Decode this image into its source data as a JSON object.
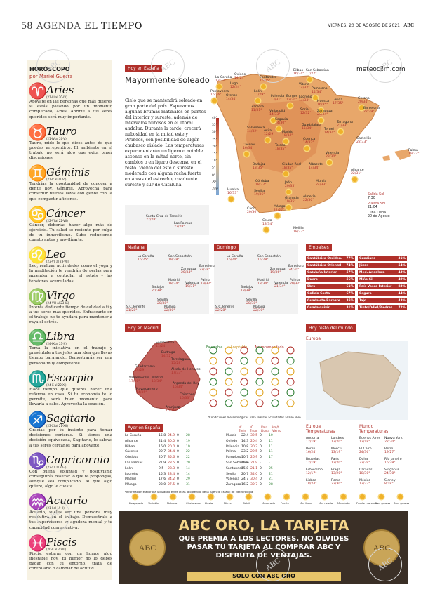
{
  "header": {
    "page": "58",
    "section": "AGENDA",
    "section_bold": "EL TIEMPO",
    "date": "VIERNES, 20 DE AGOSTO DE 2021",
    "brand": "ABC"
  },
  "horoscope": {
    "title": "HORÓSCOPO",
    "author": "por Mariel Guerra",
    "signs": [
      {
        "name": "Aries",
        "dates": "(21-III al 20-IV)",
        "text": "Apoyate en las personas que más quieres si estás pasando por un momento complicado, Aries. Abrirte a tus seres queridos será muy importante."
      },
      {
        "name": "Tauro",
        "dates": "(21-IV al 20-V)",
        "text": "Tauro, mide lo que dices antes de que puedas arrepentirte. El ambiente en el trabajo no será algo que evita tener discusiones."
      },
      {
        "name": "Géminis",
        "dates": "(21-V al 21-VI)",
        "text": "Tendrías la oportunidad de conocer a gente hoy, Géminis. Aprovecha para construir nuevos lazos con gente con la que compartir aficiones."
      },
      {
        "name": "Cáncer",
        "dates": "(22-VI al 22-VII)",
        "text": "Cáncer, deberías hacer algo más de ejercicio. Tu salud se resiente por culpa de tu inmovilismo. Sube reduciendo cuanto antes y movilízarte."
      },
      {
        "name": "Leo",
        "dates": "(23-VII al 23-VIII)",
        "text": "Leo, realizar actividades como el yoga y la meditación te vendrán de perlas para aprender a controlar el estrés y las tensiones acumuladas."
      },
      {
        "name": "Virgo",
        "dates": "(24-VIII al 23-IX)",
        "text": "Intenta dedicarte tiempo de calidad a ti y a tus seres más queridos. Enfrascarte en el trabajo no te ayudará para mantener a raya el estrés."
      },
      {
        "name": "Libra",
        "dates": "(24-IX al 23-X)",
        "text": "Toma la iniciativa en el trabajo y preséntale a tus jefes una idea que llevas tiempo barajando. Demostrarás ser una persona muy competente."
      },
      {
        "name": "Escorpio",
        "dates": "(24-X al 22-XI)",
        "text": "Hace tiempo que quieres hacer una reforma en casa. Si tu economía te lo permite, será buen momento para llevarla a cabo. Aprovecha la ocasión."
      },
      {
        "name": "Sagitario",
        "dates": "(23-XI al 21-XII)",
        "text": "Gracias por tu instinto para tomar decisiones certeras. Si tienes una decisión equivocada, Sagitario, lo sabrás a tus seres cercanos para apoyarte."
      },
      {
        "name": "Capricornio",
        "dates": "(22-XII al 20-I)",
        "text": "Con buena voluntad y positivismo conseguirás realizar lo que te propongas, aunque sea complicado. Al que algo quiere, algo le cuesta."
      },
      {
        "name": "Acuario",
        "dates": "(21-I al 19-II)",
        "text": "Acuario, sueles ser una persona muy resolutiva en el trabajo. Demuéstrale a tus supervisores tu agudeza mental y tu capacidad comunicativa."
      },
      {
        "name": "Piscis",
        "dates": "(20-II al 20-III)",
        "text": "Piscis, estarás con un humor algo inestable hoy. El humor no lo debes pagar con tu entorno, trata de controlarlo o cambiar de actitud."
      }
    ]
  },
  "today": {
    "tag": "Hoy en España",
    "title": "Mayormente soleado",
    "text": "Cielo que se mantendrá soleado en gran parte del país. Esperamos algunas brumas matinales en puntos del interior y sureste, además de intervalos nubosos en el litoral andaluz. Durante la tarde, crecerá nubosidad en la mitad este y Pirineos, con posibilidad de algún chubasco aislado. Las temperaturas experimentarán un ligero o notable ascenso en la mitad norte, sin cambios o en ligero descenso en el resto. Viento del este o sureste moderado con alguna racha fuerte en áreas del estrecho, cuadrante sureste y sur de Cataluña",
    "site": "meteoclim.com"
  },
  "scale": [
    "40°",
    "35°",
    "30°",
    "25°",
    "20°",
    "15°",
    "10°",
    "5°",
    "0°",
    "-5°",
    "-10°"
  ],
  "map_cities": [
    [
      "La Coruña",
      "13/22°"
    ],
    [
      "Oviedo",
      "14/24°"
    ],
    [
      "Santander",
      "15/25°"
    ],
    [
      "Bilbao",
      "16/34°"
    ],
    [
      "San Sebastián",
      "17/27°"
    ],
    [
      "Lugo",
      "12/24°"
    ],
    [
      "Pontevedra",
      "16/26°"
    ],
    [
      "Orense",
      "14/34°"
    ],
    [
      "León",
      "11/29°"
    ],
    [
      "Palencia",
      "13/31°"
    ],
    [
      "Burgos",
      "12/30°"
    ],
    [
      "Vitoria",
      "14/32°"
    ],
    [
      "Pamplona",
      "14/34°"
    ],
    [
      "Logroño",
      "14/33°"
    ],
    [
      "Huesca",
      "16/35°"
    ],
    [
      "Lérida",
      "17/35°"
    ],
    [
      "Gerona",
      "20/34°"
    ],
    [
      "Barcelona",
      "22/29°"
    ],
    [
      "Zaragoza",
      "20/34°"
    ],
    [
      "Soria",
      "12/32°"
    ],
    [
      "Valladolid",
      "14/33°"
    ],
    [
      "Zamora",
      "11/31°"
    ],
    [
      "Segovia",
      "14/30°"
    ],
    [
      "Salamanca",
      "14/32°"
    ],
    [
      "Ávila",
      "12/29°"
    ],
    [
      "Guadalajara",
      "15/34°"
    ],
    [
      "Madrid",
      "18/34°"
    ],
    [
      "Teruel",
      "14/34°"
    ],
    [
      "Tarragona",
      "21/33°"
    ],
    [
      "Castellón",
      "22/33°"
    ],
    [
      "Cáceres",
      "16/34°"
    ],
    [
      "Toledo",
      "18/35°"
    ],
    [
      "Cuenca",
      "14/32°"
    ],
    [
      "Palma",
      "19/32°"
    ],
    [
      "Valencia",
      "23/30°"
    ],
    [
      "Badajoz",
      "13/35°"
    ],
    [
      "Ciudad Real",
      "18/35°"
    ],
    [
      "Albacete",
      "14/34°"
    ],
    [
      "Alicante",
      "22/31°"
    ],
    [
      "Córdoba",
      "18/37°"
    ],
    [
      "Jaén",
      "20/35°"
    ],
    [
      "Murcia",
      "24/33°"
    ],
    [
      "Huelva",
      "16/33°"
    ],
    [
      "Sevilla",
      "19/36°"
    ],
    [
      "Granada",
      "19/35°"
    ],
    [
      "Almería",
      "22/30°"
    ],
    [
      "Málaga",
      "22/27°"
    ],
    [
      "Cádiz",
      "20/30°"
    ],
    [
      "Ceuta",
      "18/34°"
    ],
    [
      "Melilla",
      "18/23°"
    ],
    [
      "Santa Cruz de Tenerife",
      "22/28°"
    ],
    [
      "Las Palmas",
      "22/28°"
    ]
  ],
  "sun": {
    "rise_label": "Salida Sol",
    "rise": "7:30",
    "set_label": "Puesta Sol",
    "set": "21:04",
    "moon_label": "Luna Llena",
    "moon": "20 de Agosto"
  },
  "tomorrow": {
    "tag": "Mañana",
    "cities": [
      [
        "La Coruña",
        "16/25°"
      ],
      [
        "San Sebastián",
        "19/28°"
      ],
      [
        "Zaragoza",
        "20/34°"
      ],
      [
        "Barcelona",
        "22/28°"
      ],
      [
        "Madrid",
        "18/34°"
      ],
      [
        "Valencia",
        "19/31°"
      ],
      [
        "Palma",
        "19/32°"
      ],
      [
        "Badajoz",
        "20/38°"
      ],
      [
        "Sevilla",
        "20/38°"
      ],
      [
        "Málaga",
        "22/30°"
      ],
      [
        "S.C.Tenerife",
        "21/28°"
      ]
    ]
  },
  "sunday": {
    "tag": "Domingo",
    "cities": [
      [
        "La Coruña",
        "16/24°"
      ],
      [
        "San Sebastián",
        "15/28°"
      ],
      [
        "Zaragoza",
        "19/36°"
      ],
      [
        "Barcelona",
        "24/30°"
      ],
      [
        "Madrid",
        "18/34°"
      ],
      [
        "Valencia",
        "21/34°"
      ],
      [
        "Palma",
        "20/32°"
      ],
      [
        "Badajoz",
        "18/38°"
      ],
      [
        "Sevilla",
        "20/38°"
      ],
      [
        "Málaga",
        "22/30°"
      ],
      [
        "S.C.Tenerife",
        "22/28°"
      ]
    ]
  },
  "reservoirs": {
    "tag": "Embalses",
    "left": [
      [
        "Cantábrico Occiden.",
        "77%"
      ],
      [
        "Cantábrico Oriental",
        "74%"
      ],
      [
        "Cataluña Interior",
        "57%"
      ],
      [
        "Duero",
        "56%"
      ],
      [
        "Ebro",
        "61%"
      ],
      [
        "Galicia Costa",
        "67%"
      ],
      [
        "Guadalete-Barbate",
        "35%"
      ],
      [
        "Guadalquivir",
        "31%"
      ]
    ],
    "right": [
      [
        "Guadiana",
        "31%"
      ],
      [
        "Júcar",
        "54%"
      ],
      [
        "Med. Andaluza",
        "43%"
      ],
      [
        "Miño-Sil",
        "49%"
      ],
      [
        "País Vasco Interior",
        "83%"
      ],
      [
        "Segura",
        "44%"
      ],
      [
        "Tajo",
        "43%"
      ],
      [
        "Tinto/Odiel/Piedras",
        "72%"
      ]
    ]
  },
  "madrid": {
    "tag": "Hoy en Madrid",
    "legend": [
      "Favorable",
      "Aceptable",
      "No recomendado"
    ],
    "note": "*Condiciones meteorológicas para realizar actividades al aire libre",
    "cities": [
      [
        "Somosierra",
        "11/24°"
      ],
      [
        "Buitrago",
        "14/32°"
      ],
      [
        "Torrelaguna",
        "15/28°"
      ],
      [
        "Guadarrama",
        "14/29°"
      ],
      [
        "Alcalá de Henares",
        "17/33°"
      ],
      [
        "Valdemorillo",
        "17/30°"
      ],
      [
        "Madrid",
        "18/34°"
      ],
      [
        "Arganda del Rey",
        "16/34°"
      ],
      [
        "Navalcarnero",
        "14/35°"
      ],
      [
        "Chinchón",
        "16/33°"
      ],
      [
        "Aranjuez",
        "16/35°"
      ]
    ]
  },
  "world": {
    "tag": "Hoy resto del mundo",
    "europe": "Europa"
  },
  "yesterday": {
    "tag": "Ayer en España",
    "hdr": [
      "ºC Tmin",
      "ºC Tmax",
      "I/m² Lluvia",
      "km/h Viento"
    ],
    "left": [
      [
        "La Coruña",
        "15.8",
        "24.9",
        "0",
        "28"
      ],
      [
        "Alicante",
        "21.4",
        "30.0",
        "0",
        "19"
      ],
      [
        "Bilbao",
        "16.0",
        "20.0",
        "0",
        "19"
      ],
      [
        "Cáceres",
        "20.7",
        "34.4",
        "0",
        "22"
      ],
      [
        "Córdoba",
        "20.7",
        "35.6",
        "0",
        "22"
      ],
      [
        "Las Palmas",
        "21.9",
        "28.5",
        "0",
        "20"
      ],
      [
        "León",
        "9.5",
        "28.3",
        "0",
        "14"
      ],
      [
        "Logroño",
        "15.3",
        "28.4",
        "0",
        "14"
      ],
      [
        "Madrid",
        "17.6",
        "34.2",
        "0",
        "29"
      ],
      [
        "Málaga",
        "23.0",
        "27.5",
        "0",
        "31"
      ]
    ],
    "right": [
      [
        "Murcia",
        "22.4",
        "32.5",
        "0",
        "10"
      ],
      [
        "Oviedo",
        "14.3",
        "20.4",
        "0",
        "11"
      ],
      [
        "Palencia",
        "10.8",
        "30.2",
        "0",
        "11"
      ],
      [
        "Palma",
        "23.2",
        "29.5",
        "0",
        "11"
      ],
      [
        "Pamplona",
        "10.7",
        "26.9",
        "0",
        "17"
      ],
      [
        "San Sebastián",
        "16.9",
        "21.9",
        "-",
        "-"
      ],
      [
        "Santander",
        "15.8",
        "21.1",
        "0",
        "25"
      ],
      [
        "Sevilla",
        "20.7",
        "34.0",
        "0",
        "21"
      ],
      [
        "Valencia",
        "24.7",
        "30.4",
        "0",
        "21"
      ],
      [
        "Zaragoza",
        "16.2",
        "30.7",
        "0",
        "28"
      ]
    ],
    "note": "*Información elaborada utilizando entre otras la obtenida de la Agencia Estatal de Meteorología"
  },
  "eu_temps": {
    "title": "Europa Temperaturas",
    "cities": [
      [
        "Andorra",
        "12/19°"
      ],
      [
        "Londres",
        "13/20°"
      ],
      [
        "Berlín",
        "16/24°"
      ],
      [
        "Moscú",
        "13/19°"
      ],
      [
        "Bruselas",
        "12/19°"
      ],
      [
        "París",
        "12/20°"
      ],
      [
        "Estocolmo",
        "12/17°"
      ],
      [
        "Praga",
        "13/20°"
      ],
      [
        "Lisboa",
        "18/24°"
      ],
      [
        "Roma",
        "22/30°"
      ]
    ]
  },
  "world_temps": {
    "title": "Mundo Temperaturas",
    "cities": [
      [
        "Buenos Aires",
        "12/18°"
      ],
      [
        "Nueva York",
        "22/30°"
      ],
      [
        "El Cairo",
        "24/36°"
      ],
      [
        "Pekín",
        "19/27°"
      ],
      [
        "Doha",
        "32/39°"
      ],
      [
        "Río Janeiro",
        "16/28°"
      ],
      [
        "Caracas",
        "18/30°"
      ],
      [
        "Singapur",
        "24/30°"
      ],
      [
        "México",
        "13/22°"
      ],
      [
        "Sidney",
        "8/18°"
      ]
    ]
  },
  "icon_legend": [
    "Despejado",
    "Variable",
    "Nuboso",
    "Chubascos",
    "Lluvia",
    "Nieve",
    "Débil",
    "Moderado",
    "Fuerte",
    "Mar llana",
    "Mar rizada",
    "Marejada",
    "Fuerte marejada",
    "Mar gruesa",
    "Mar gruesa"
  ],
  "ad": {
    "title": "ABC ORO, LA TARJETA",
    "line1": "QUE PREMIA A LOS LECTORES. NO OLVIDES",
    "line2": "PASAR TU TARJETA AL COMPRAR ABC Y",
    "line3": "DISFRUTA DE VENTAJAS.",
    "cta": "SOLO CON ABC ORO",
    "coin": "ABC"
  },
  "watermark": "ABC"
}
